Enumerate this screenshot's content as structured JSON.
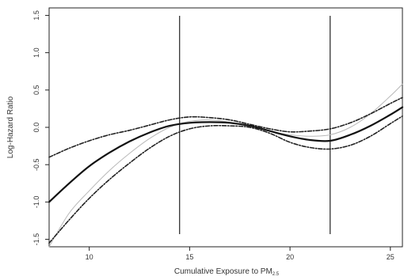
{
  "chart_data": {
    "type": "line",
    "title": "",
    "xlabel": "Cumulative Exposure to PM",
    "xlabel_sub": "2.5",
    "ylabel": "Log-Hazard Ratio",
    "xlim": [
      8,
      25.6
    ],
    "ylim": [
      -1.6,
      1.6
    ],
    "xticks": [
      10,
      15,
      20,
      25
    ],
    "xtick_labels": [
      "10",
      "15",
      "20",
      "25"
    ],
    "yticks": [
      -1.5,
      -1.0,
      -0.5,
      0.0,
      0.5,
      1.0,
      1.5
    ],
    "ytick_labels": [
      "-1.5",
      "-1.0",
      "-0.5",
      "0.0",
      "0.5",
      "1.0",
      "1.5"
    ],
    "knots": [
      14.5,
      22
    ],
    "grid": false,
    "legend": "none",
    "series": [
      {
        "role": "estimate",
        "color": "#111111",
        "style": "solid",
        "x": [
          8,
          9,
          10,
          11,
          12,
          13,
          14,
          15,
          16,
          17,
          18,
          19,
          20,
          21,
          22,
          23,
          24,
          25,
          25.6
        ],
        "y": [
          -1.0,
          -0.75,
          -0.52,
          -0.34,
          -0.19,
          -0.07,
          0.02,
          0.06,
          0.07,
          0.06,
          0.02,
          -0.05,
          -0.12,
          -0.17,
          -0.18,
          -0.1,
          0.02,
          0.17,
          0.27
        ]
      },
      {
        "role": "upper-band",
        "color": "#222222",
        "style": "dashdot",
        "x": [
          8,
          9,
          10,
          11,
          12,
          13,
          14,
          15,
          16,
          17,
          18,
          19,
          20,
          21,
          22,
          23,
          24,
          25,
          25.6
        ],
        "y": [
          -0.4,
          -0.28,
          -0.18,
          -0.1,
          -0.04,
          0.03,
          0.1,
          0.14,
          0.13,
          0.1,
          0.04,
          -0.02,
          -0.06,
          -0.05,
          -0.02,
          0.06,
          0.18,
          0.32,
          0.4
        ]
      },
      {
        "role": "lower-band",
        "color": "#222222",
        "style": "dashdot",
        "x": [
          8,
          9,
          10,
          11,
          12,
          13,
          14,
          15,
          16,
          17,
          18,
          19,
          20,
          21,
          22,
          23,
          24,
          25,
          25.6
        ],
        "y": [
          -1.55,
          -1.24,
          -0.95,
          -0.7,
          -0.48,
          -0.28,
          -0.12,
          -0.02,
          0.02,
          0.02,
          0.0,
          -0.08,
          -0.2,
          -0.27,
          -0.29,
          -0.24,
          -0.12,
          0.05,
          0.15
        ]
      },
      {
        "role": "faint-curve",
        "color": "#b8b8b8",
        "style": "solid",
        "x": [
          8,
          9,
          10,
          11,
          12,
          13,
          14,
          15,
          16,
          17,
          18,
          19,
          20,
          21,
          22,
          23,
          24,
          25,
          25.6
        ],
        "y": [
          -1.6,
          -1.15,
          -0.85,
          -0.58,
          -0.35,
          -0.15,
          0.0,
          0.08,
          0.1,
          0.07,
          0.02,
          -0.05,
          -0.1,
          -0.12,
          -0.1,
          0.0,
          0.18,
          0.42,
          0.58
        ]
      }
    ]
  }
}
